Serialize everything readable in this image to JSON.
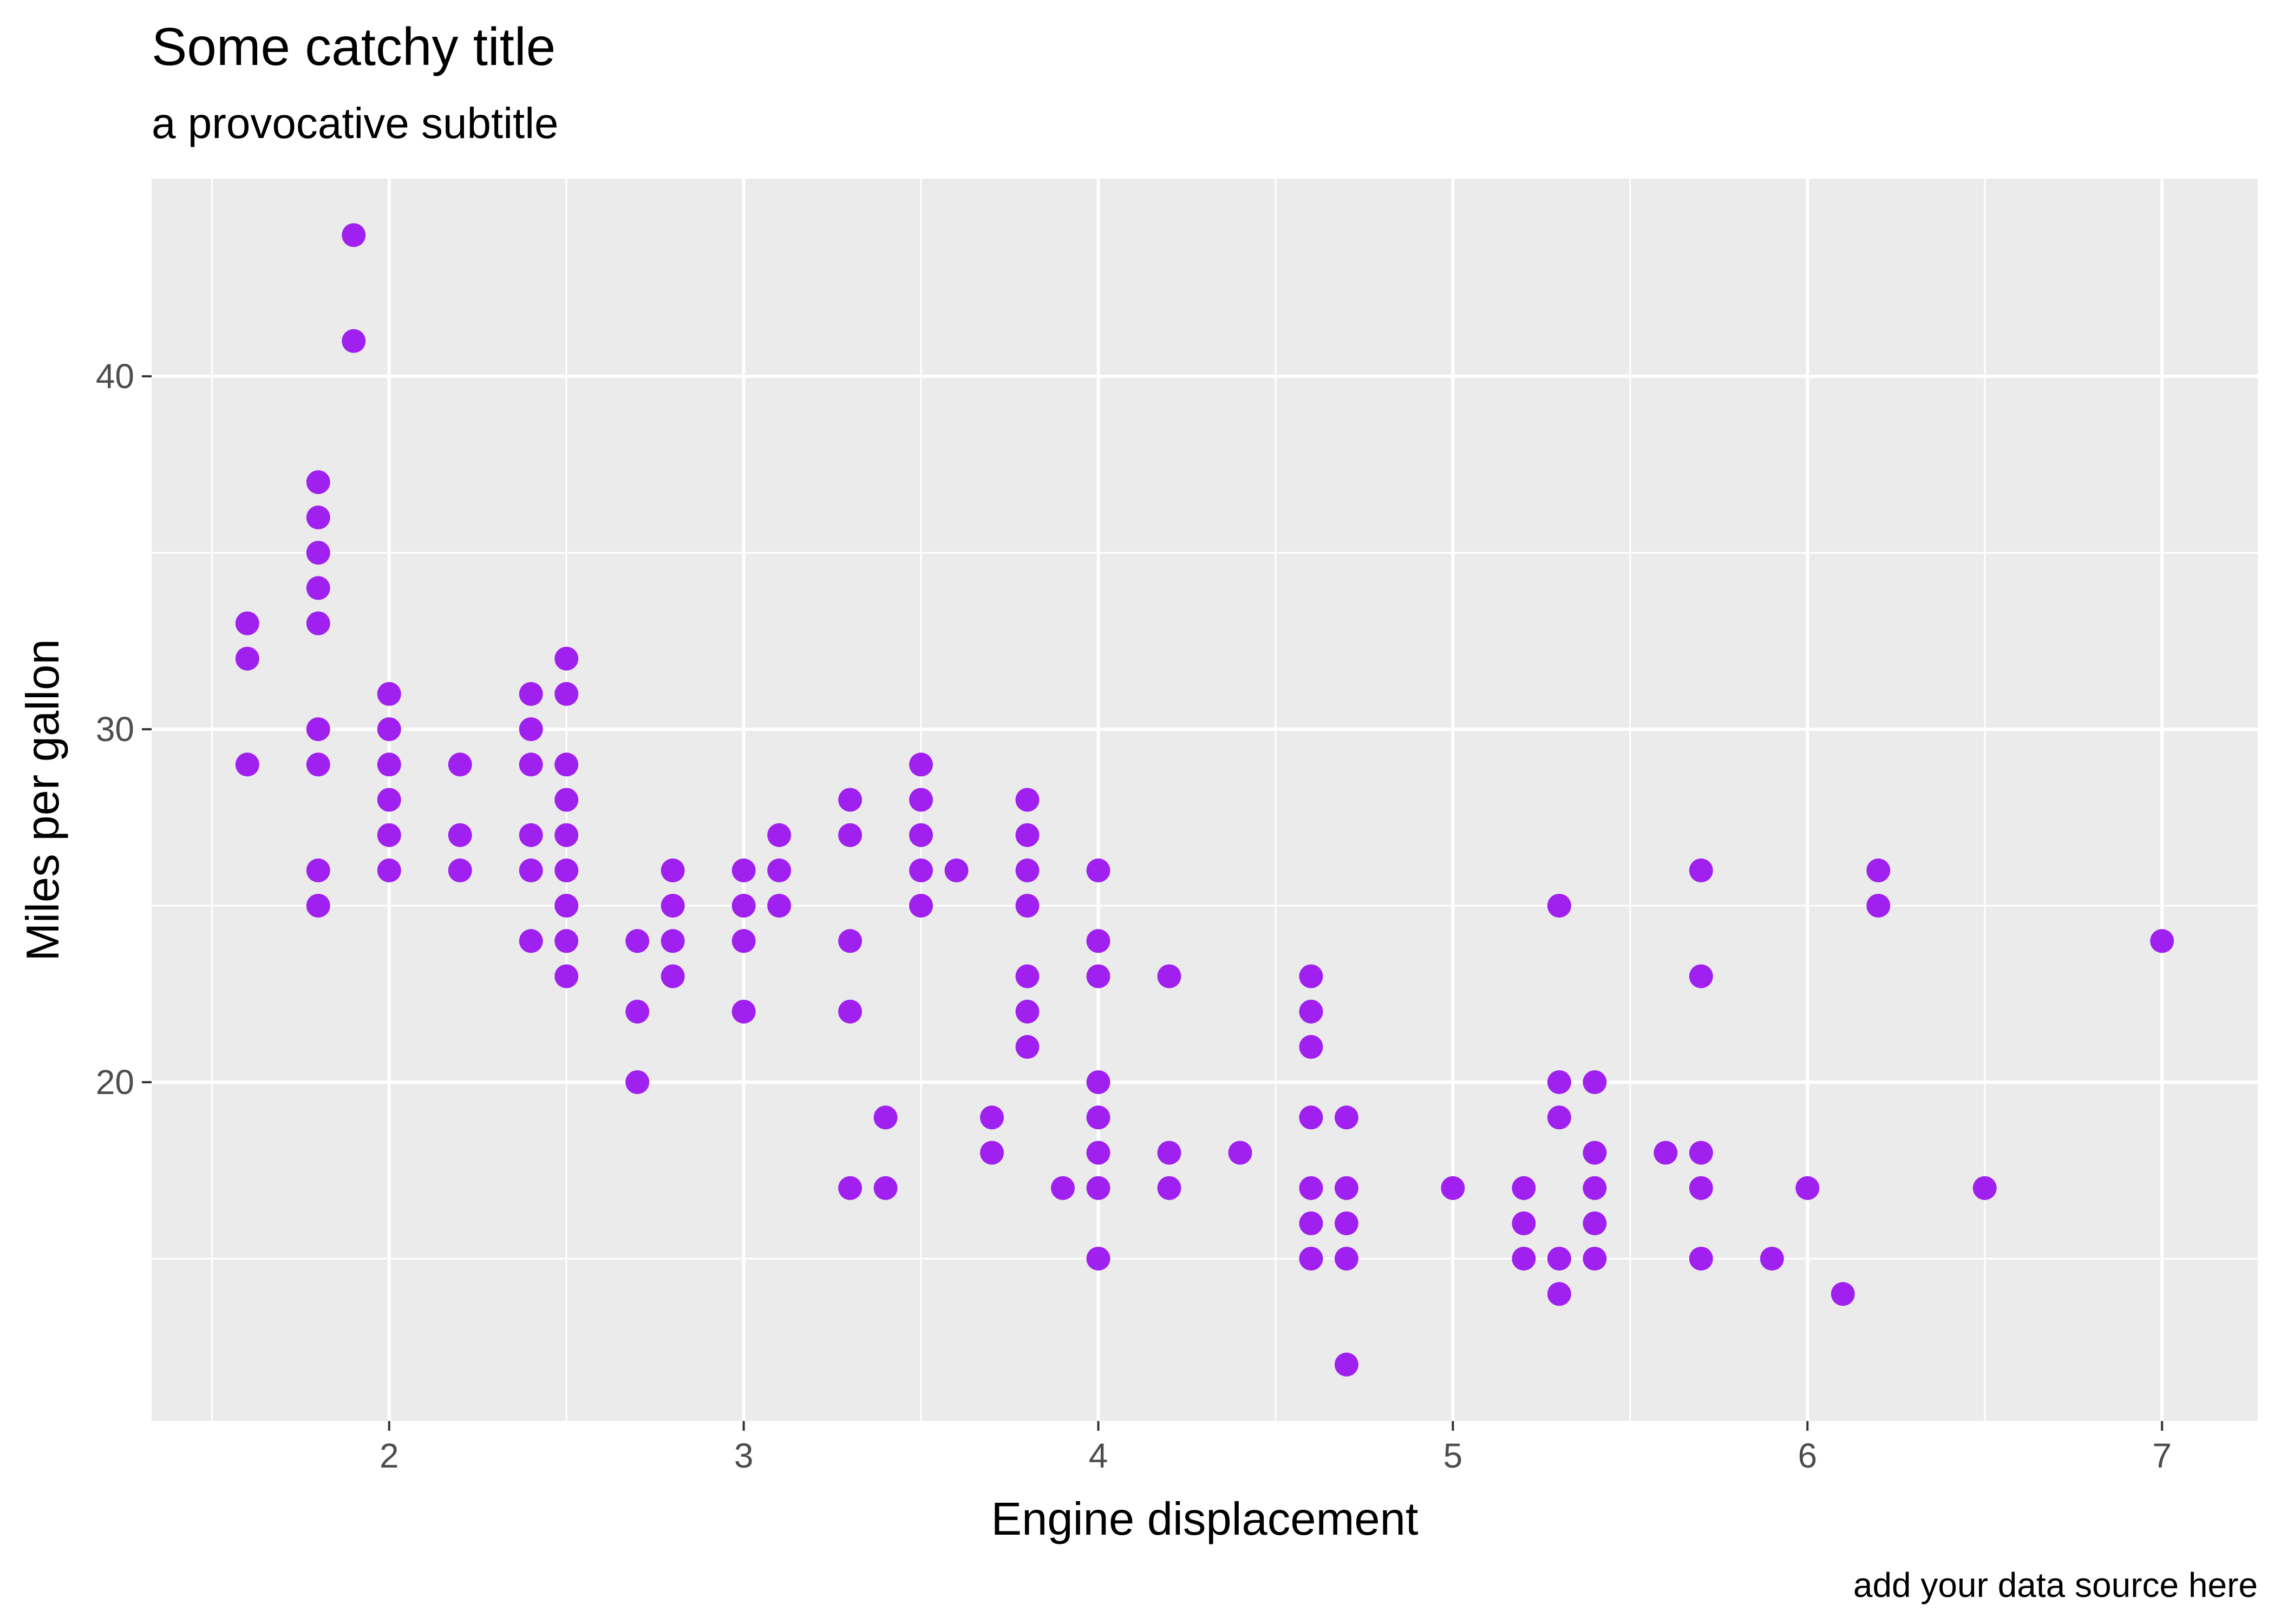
{
  "chart_data": {
    "type": "scatter",
    "title": "Some catchy title",
    "subtitle": "a provocative subtitle",
    "xlabel": "Engine displacement",
    "ylabel": "Miles per gallon",
    "caption": "add your data source here",
    "xlim": [
      1.33,
      7.27
    ],
    "ylim": [
      10.4,
      45.6
    ],
    "xticks": [
      2,
      3,
      4,
      5,
      6,
      7
    ],
    "yticks": [
      20,
      30,
      40
    ],
    "xminor": [
      1.5,
      2.5,
      3.5,
      4.5,
      5.5,
      6.5
    ],
    "yminor": [
      15,
      25,
      35
    ],
    "grid": true,
    "point_color": "#A020F0",
    "panel_color": "#EBEBEB",
    "grid_color": "#FFFFFF",
    "points": [
      [
        1.6,
        29
      ],
      [
        1.6,
        32
      ],
      [
        1.6,
        33
      ],
      [
        1.8,
        25
      ],
      [
        1.8,
        26
      ],
      [
        1.8,
        29
      ],
      [
        1.8,
        30
      ],
      [
        1.8,
        33
      ],
      [
        1.8,
        34
      ],
      [
        1.8,
        35
      ],
      [
        1.8,
        36
      ],
      [
        1.8,
        37
      ],
      [
        1.9,
        41
      ],
      [
        1.9,
        44
      ],
      [
        2.0,
        26
      ],
      [
        2.0,
        27
      ],
      [
        2.0,
        28
      ],
      [
        2.0,
        29
      ],
      [
        2.0,
        30
      ],
      [
        2.0,
        31
      ],
      [
        2.2,
        26
      ],
      [
        2.2,
        27
      ],
      [
        2.2,
        29
      ],
      [
        2.4,
        24
      ],
      [
        2.4,
        26
      ],
      [
        2.4,
        27
      ],
      [
        2.4,
        29
      ],
      [
        2.4,
        30
      ],
      [
        2.4,
        31
      ],
      [
        2.5,
        23
      ],
      [
        2.5,
        24
      ],
      [
        2.5,
        25
      ],
      [
        2.5,
        26
      ],
      [
        2.5,
        27
      ],
      [
        2.5,
        28
      ],
      [
        2.5,
        29
      ],
      [
        2.5,
        31
      ],
      [
        2.5,
        32
      ],
      [
        2.7,
        20
      ],
      [
        2.7,
        22
      ],
      [
        2.7,
        24
      ],
      [
        2.8,
        23
      ],
      [
        2.8,
        24
      ],
      [
        2.8,
        25
      ],
      [
        2.8,
        26
      ],
      [
        3.0,
        22
      ],
      [
        3.0,
        24
      ],
      [
        3.0,
        25
      ],
      [
        3.0,
        26
      ],
      [
        3.1,
        25
      ],
      [
        3.1,
        26
      ],
      [
        3.1,
        27
      ],
      [
        3.3,
        17
      ],
      [
        3.3,
        22
      ],
      [
        3.3,
        24
      ],
      [
        3.3,
        27
      ],
      [
        3.3,
        28
      ],
      [
        3.4,
        17
      ],
      [
        3.4,
        19
      ],
      [
        3.5,
        25
      ],
      [
        3.5,
        26
      ],
      [
        3.5,
        27
      ],
      [
        3.5,
        28
      ],
      [
        3.5,
        29
      ],
      [
        3.6,
        26
      ],
      [
        3.7,
        18
      ],
      [
        3.7,
        19
      ],
      [
        3.8,
        21
      ],
      [
        3.8,
        22
      ],
      [
        3.8,
        23
      ],
      [
        3.8,
        25
      ],
      [
        3.8,
        26
      ],
      [
        3.8,
        27
      ],
      [
        3.8,
        28
      ],
      [
        3.9,
        17
      ],
      [
        4.0,
        15
      ],
      [
        4.0,
        17
      ],
      [
        4.0,
        18
      ],
      [
        4.0,
        19
      ],
      [
        4.0,
        20
      ],
      [
        4.0,
        23
      ],
      [
        4.0,
        24
      ],
      [
        4.0,
        26
      ],
      [
        4.2,
        17
      ],
      [
        4.2,
        18
      ],
      [
        4.2,
        23
      ],
      [
        4.4,
        18
      ],
      [
        4.6,
        15
      ],
      [
        4.6,
        16
      ],
      [
        4.6,
        17
      ],
      [
        4.6,
        19
      ],
      [
        4.6,
        21
      ],
      [
        4.6,
        22
      ],
      [
        4.6,
        23
      ],
      [
        4.7,
        12
      ],
      [
        4.7,
        15
      ],
      [
        4.7,
        16
      ],
      [
        4.7,
        17
      ],
      [
        4.7,
        19
      ],
      [
        5.0,
        17
      ],
      [
        5.2,
        15
      ],
      [
        5.2,
        16
      ],
      [
        5.2,
        17
      ],
      [
        5.3,
        14
      ],
      [
        5.3,
        15
      ],
      [
        5.3,
        19
      ],
      [
        5.3,
        20
      ],
      [
        5.3,
        25
      ],
      [
        5.4,
        15
      ],
      [
        5.4,
        16
      ],
      [
        5.4,
        17
      ],
      [
        5.4,
        18
      ],
      [
        5.4,
        20
      ],
      [
        5.6,
        18
      ],
      [
        5.7,
        15
      ],
      [
        5.7,
        17
      ],
      [
        5.7,
        18
      ],
      [
        5.7,
        23
      ],
      [
        5.7,
        26
      ],
      [
        5.9,
        15
      ],
      [
        6.0,
        17
      ],
      [
        6.1,
        14
      ],
      [
        6.2,
        25
      ],
      [
        6.2,
        26
      ],
      [
        6.5,
        17
      ],
      [
        7.0,
        24
      ]
    ]
  }
}
